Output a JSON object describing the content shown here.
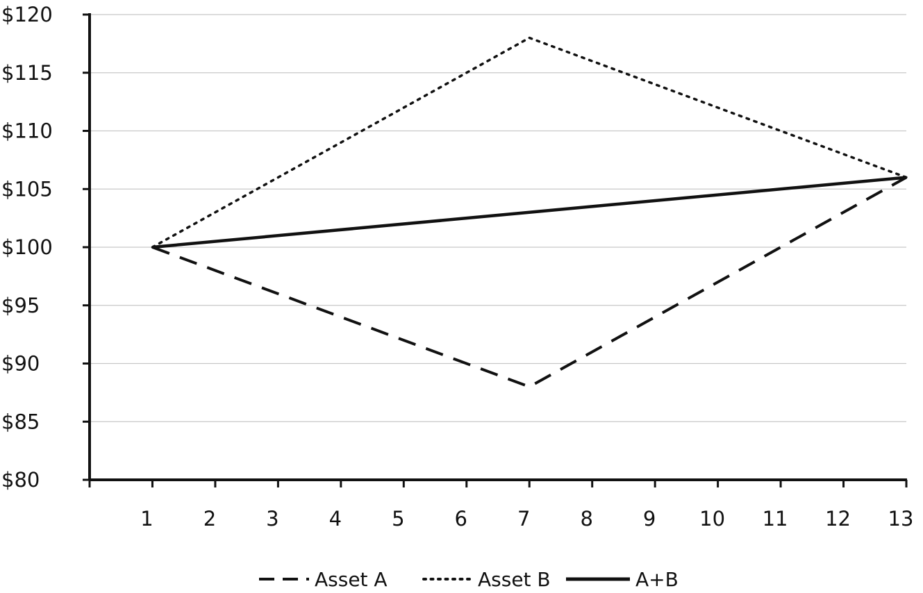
{
  "chart_data": {
    "type": "line",
    "x": [
      1,
      2,
      3,
      4,
      5,
      6,
      7,
      8,
      9,
      10,
      11,
      12,
      13
    ],
    "xlim": [
      0,
      13
    ],
    "ylim": [
      80,
      120
    ],
    "y_ticks": [
      80,
      85,
      90,
      95,
      100,
      105,
      110,
      115,
      120
    ],
    "y_tick_labels": [
      "$80",
      "$85",
      "$90",
      "$95",
      "$100",
      "$105",
      "$110",
      "$115",
      "$120"
    ],
    "x_tick_labels": [
      "1",
      "2",
      "3",
      "4",
      "5",
      "6",
      "7",
      "8",
      "9",
      "10",
      "11",
      "12",
      "13"
    ],
    "grid": "horizontal",
    "legend_position": "bottom",
    "series": [
      {
        "name": "Asset A",
        "style": "dashed",
        "color": "#111111",
        "points": [
          [
            1,
            100
          ],
          [
            7,
            88
          ],
          [
            13,
            106
          ]
        ]
      },
      {
        "name": "Asset B",
        "style": "dotted",
        "color": "#111111",
        "points": [
          [
            1,
            100
          ],
          [
            7,
            118
          ],
          [
            13,
            106
          ]
        ]
      },
      {
        "name": "A+B",
        "style": "solid",
        "color": "#111111",
        "points": [
          [
            1,
            100
          ],
          [
            7,
            103
          ],
          [
            13,
            106
          ]
        ]
      }
    ]
  }
}
